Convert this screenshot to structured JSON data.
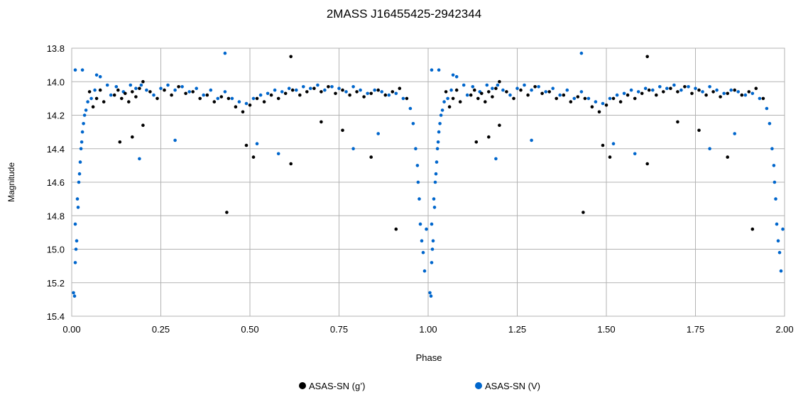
{
  "chart_data": {
    "type": "scatter",
    "title": "2MASS J16455425-2942344",
    "xlabel": "Phase",
    "ylabel": "Magnitude",
    "xlim": [
      0,
      2
    ],
    "ylim": [
      15.4,
      13.8
    ],
    "y_inverted": true,
    "grid": true,
    "legend_position": "bottom-center",
    "x_ticks": [
      "0.00",
      "0.25",
      "0.50",
      "0.75",
      "1.00",
      "1.25",
      "1.50",
      "1.75",
      "2.00"
    ],
    "y_ticks": [
      "13.8",
      "14.0",
      "14.2",
      "14.4",
      "14.6",
      "14.8",
      "15.0",
      "15.2",
      "15.4"
    ],
    "repeat_period": 1,
    "series": [
      {
        "name": "ASAS-SN (g’)",
        "color": "#000000",
        "points": [
          [
            0.05,
            14.06
          ],
          [
            0.06,
            14.15
          ],
          [
            0.07,
            14.1
          ],
          [
            0.08,
            14.05
          ],
          [
            0.09,
            14.12
          ],
          [
            0.12,
            14.08
          ],
          [
            0.13,
            14.05
          ],
          [
            0.14,
            14.1
          ],
          [
            0.15,
            14.07
          ],
          [
            0.16,
            14.12
          ],
          [
            0.17,
            14.06
          ],
          [
            0.18,
            14.09
          ],
          [
            0.19,
            14.04
          ],
          [
            0.2,
            14.0
          ],
          [
            0.22,
            14.06
          ],
          [
            0.24,
            14.1
          ],
          [
            0.26,
            14.05
          ],
          [
            0.28,
            14.08
          ],
          [
            0.3,
            14.03
          ],
          [
            0.32,
            14.07
          ],
          [
            0.34,
            14.06
          ],
          [
            0.36,
            14.1
          ],
          [
            0.38,
            14.08
          ],
          [
            0.4,
            14.12
          ],
          [
            0.42,
            14.09
          ],
          [
            0.44,
            14.1
          ],
          [
            0.46,
            14.15
          ],
          [
            0.48,
            14.18
          ],
          [
            0.5,
            14.14
          ],
          [
            0.52,
            14.1
          ],
          [
            0.54,
            14.12
          ],
          [
            0.56,
            14.08
          ],
          [
            0.58,
            14.1
          ],
          [
            0.6,
            14.07
          ],
          [
            0.62,
            14.05
          ],
          [
            0.64,
            14.08
          ],
          [
            0.66,
            14.06
          ],
          [
            0.68,
            14.04
          ],
          [
            0.7,
            14.06
          ],
          [
            0.72,
            14.03
          ],
          [
            0.74,
            14.07
          ],
          [
            0.76,
            14.05
          ],
          [
            0.78,
            14.08
          ],
          [
            0.8,
            14.06
          ],
          [
            0.82,
            14.09
          ],
          [
            0.84,
            14.07
          ],
          [
            0.86,
            14.05
          ],
          [
            0.88,
            14.08
          ],
          [
            0.9,
            14.06
          ],
          [
            0.92,
            14.04
          ],
          [
            0.94,
            14.1
          ],
          [
            0.135,
            14.36
          ],
          [
            0.17,
            14.33
          ],
          [
            0.2,
            14.26
          ],
          [
            0.435,
            14.78
          ],
          [
            0.49,
            14.38
          ],
          [
            0.51,
            14.45
          ],
          [
            0.615,
            14.49
          ],
          [
            0.615,
            13.85
          ],
          [
            0.7,
            14.24
          ],
          [
            0.76,
            14.29
          ],
          [
            0.84,
            14.45
          ],
          [
            0.91,
            14.88
          ]
        ]
      },
      {
        "name": "ASAS-SN (V)",
        "color": "#0066cc",
        "points": [
          [
            0.005,
            15.26
          ],
          [
            0.008,
            15.28
          ],
          [
            0.01,
            15.08
          ],
          [
            0.01,
            14.85
          ],
          [
            0.012,
            15.0
          ],
          [
            0.014,
            14.95
          ],
          [
            0.016,
            14.7
          ],
          [
            0.018,
            14.75
          ],
          [
            0.02,
            14.6
          ],
          [
            0.022,
            14.55
          ],
          [
            0.024,
            14.48
          ],
          [
            0.026,
            14.4
          ],
          [
            0.028,
            14.36
          ],
          [
            0.03,
            14.3
          ],
          [
            0.033,
            14.25
          ],
          [
            0.036,
            14.2
          ],
          [
            0.04,
            14.17
          ],
          [
            0.045,
            14.12
          ],
          [
            0.055,
            14.1
          ],
          [
            0.065,
            14.05
          ],
          [
            0.08,
            13.97
          ],
          [
            0.1,
            14.02
          ],
          [
            0.11,
            14.08
          ],
          [
            0.125,
            14.03
          ],
          [
            0.145,
            14.06
          ],
          [
            0.165,
            14.02
          ],
          [
            0.18,
            14.04
          ],
          [
            0.195,
            14.02
          ],
          [
            0.21,
            14.05
          ],
          [
            0.23,
            14.08
          ],
          [
            0.25,
            14.04
          ],
          [
            0.27,
            14.02
          ],
          [
            0.29,
            14.05
          ],
          [
            0.31,
            14.03
          ],
          [
            0.33,
            14.06
          ],
          [
            0.35,
            14.04
          ],
          [
            0.37,
            14.08
          ],
          [
            0.39,
            14.05
          ],
          [
            0.41,
            14.1
          ],
          [
            0.43,
            14.06
          ],
          [
            0.45,
            14.1
          ],
          [
            0.47,
            14.12
          ],
          [
            0.49,
            14.13
          ],
          [
            0.51,
            14.1
          ],
          [
            0.53,
            14.08
          ],
          [
            0.55,
            14.07
          ],
          [
            0.57,
            14.05
          ],
          [
            0.59,
            14.06
          ],
          [
            0.61,
            14.04
          ],
          [
            0.63,
            14.05
          ],
          [
            0.65,
            14.03
          ],
          [
            0.67,
            14.04
          ],
          [
            0.69,
            14.02
          ],
          [
            0.71,
            14.05
          ],
          [
            0.73,
            14.03
          ],
          [
            0.75,
            14.04
          ],
          [
            0.77,
            14.06
          ],
          [
            0.79,
            14.03
          ],
          [
            0.81,
            14.05
          ],
          [
            0.83,
            14.07
          ],
          [
            0.85,
            14.05
          ],
          [
            0.87,
            14.06
          ],
          [
            0.89,
            14.08
          ],
          [
            0.91,
            14.07
          ],
          [
            0.93,
            14.1
          ],
          [
            0.95,
            14.16
          ],
          [
            0.958,
            14.25
          ],
          [
            0.965,
            14.4
          ],
          [
            0.97,
            14.5
          ],
          [
            0.972,
            14.6
          ],
          [
            0.975,
            14.7
          ],
          [
            0.978,
            14.85
          ],
          [
            0.982,
            14.95
          ],
          [
            0.986,
            15.02
          ],
          [
            0.99,
            15.13
          ],
          [
            0.995,
            14.88
          ],
          [
            0.01,
            13.93
          ],
          [
            0.03,
            13.93
          ],
          [
            0.07,
            13.96
          ],
          [
            0.19,
            14.46
          ],
          [
            0.29,
            14.35
          ],
          [
            0.43,
            13.83
          ],
          [
            0.52,
            14.37
          ],
          [
            0.58,
            14.43
          ],
          [
            0.79,
            14.4
          ],
          [
            0.86,
            14.31
          ]
        ]
      }
    ]
  }
}
